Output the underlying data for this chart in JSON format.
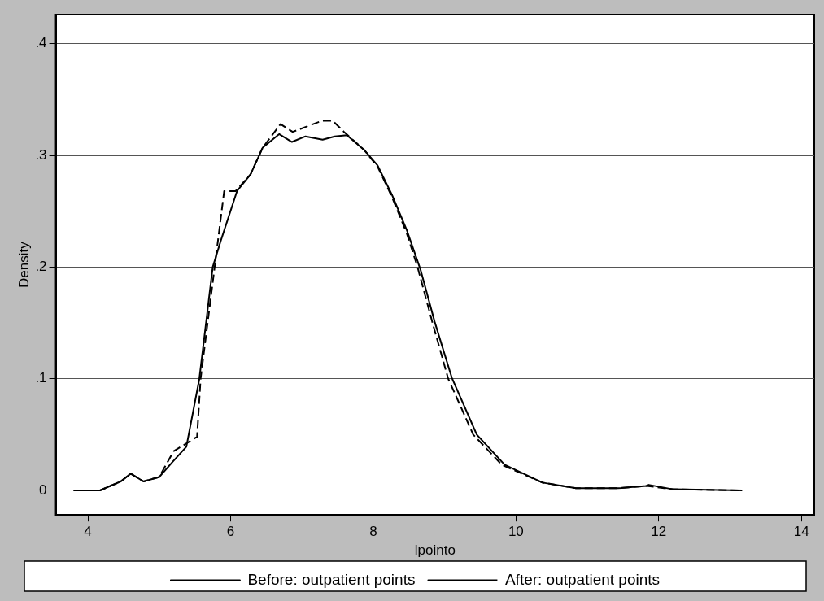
{
  "chart_data": {
    "type": "line",
    "xlabel": "lpointo",
    "ylabel": "Density",
    "xlim": [
      3.55,
      14.18
    ],
    "ylim": [
      -0.022,
      0.426
    ],
    "xticks": [
      4,
      6,
      8,
      10,
      12,
      14
    ],
    "yticks": [
      {
        "value": 0,
        "label": "0"
      },
      {
        "value": 0.1,
        "label": ".1"
      },
      {
        "value": 0.2,
        "label": ".2"
      },
      {
        "value": 0.3,
        "label": ".3"
      },
      {
        "value": 0.4,
        "label": ".4"
      }
    ],
    "grid": "y",
    "legend": "bottom",
    "marker": "none",
    "series": [
      {
        "name": "Before: outpatient points",
        "color": "#000000",
        "line_style": "solid",
        "x": [
          3.8,
          4.17,
          4.46,
          4.6,
          4.78,
          5.0,
          5.18,
          5.38,
          5.56,
          5.75,
          5.86,
          6.09,
          6.28,
          6.45,
          6.68,
          6.86,
          7.05,
          7.29,
          7.46,
          7.63,
          7.87,
          8.06,
          8.26,
          8.47,
          8.66,
          8.86,
          9.1,
          9.45,
          9.84,
          10.37,
          10.84,
          11.43,
          11.83,
          11.86,
          12.2,
          13.17
        ],
        "values": [
          0,
          0,
          0.008,
          0.015,
          0.008,
          0.012,
          0.025,
          0.039,
          0.099,
          0.2,
          0.223,
          0.268,
          0.283,
          0.307,
          0.319,
          0.312,
          0.317,
          0.314,
          0.317,
          0.318,
          0.305,
          0.291,
          0.265,
          0.233,
          0.198,
          0.151,
          0.101,
          0.05,
          0.023,
          0.007,
          0.002,
          0.002,
          0.004,
          0.005,
          0.001,
          0
        ]
      },
      {
        "name": "After: outpatient points",
        "color": "#000000",
        "line_style": "dashed",
        "x": [
          3.8,
          4.17,
          4.46,
          4.6,
          4.78,
          5.0,
          5.2,
          5.53,
          5.58,
          5.91,
          6.07,
          6.28,
          6.45,
          6.7,
          6.87,
          7.28,
          7.43,
          7.59,
          7.87,
          8.06,
          8.26,
          8.47,
          8.62,
          8.83,
          9.05,
          9.4,
          9.8,
          10.37,
          10.84,
          11.43,
          11.83,
          12.2,
          13.17
        ],
        "values": [
          0,
          0,
          0.008,
          0.015,
          0.008,
          0.012,
          0.035,
          0.048,
          0.1,
          0.268,
          0.268,
          0.283,
          0.307,
          0.328,
          0.321,
          0.331,
          0.331,
          0.321,
          0.305,
          0.29,
          0.263,
          0.23,
          0.2,
          0.15,
          0.1,
          0.05,
          0.023,
          0.007,
          0.002,
          0.002,
          0.004,
          0.001,
          0
        ]
      }
    ]
  }
}
